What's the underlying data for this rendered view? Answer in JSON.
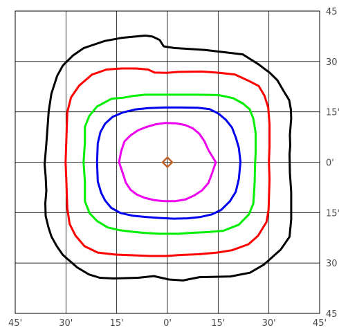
{
  "chart_data": {
    "type": "line",
    "title": "",
    "xlabel": "",
    "ylabel": "",
    "xlim": [
      -45,
      45
    ],
    "ylim": [
      -45,
      45
    ],
    "grid": true,
    "x_ticks": [
      {
        "value": -45,
        "label": "45'"
      },
      {
        "value": -30,
        "label": "30'"
      },
      {
        "value": -15,
        "label": "15'"
      },
      {
        "value": 0,
        "label": "0'"
      },
      {
        "value": 15,
        "label": "15'"
      },
      {
        "value": 30,
        "label": "30'"
      },
      {
        "value": 45,
        "label": "45'"
      }
    ],
    "y_ticks": [
      {
        "value": 45,
        "label": "45"
      },
      {
        "value": 30,
        "label": "30"
      },
      {
        "value": 15,
        "label": "15'"
      },
      {
        "value": 0,
        "label": "0'"
      },
      {
        "value": -15,
        "label": "15'"
      },
      {
        "value": -30,
        "label": "30"
      },
      {
        "value": -45,
        "label": "45"
      }
    ],
    "center_marker": {
      "x": 0,
      "y": 0,
      "shape": "diamond",
      "color": "#c0632a"
    },
    "series": [
      {
        "color": "#000000",
        "points": [
          [
            -36.3,
            -0.6
          ],
          [
            -35.8,
            5.5
          ],
          [
            -35.1,
            15.2
          ],
          [
            -34.3,
            20.4
          ],
          [
            -32.6,
            25.7
          ],
          [
            -30.9,
            28.8
          ],
          [
            -27.9,
            31.8
          ],
          [
            -24.7,
            34.0
          ],
          [
            -18.5,
            36.1
          ],
          [
            -13.6,
            37.0
          ],
          [
            -6.5,
            37.7
          ],
          [
            -4.4,
            37.4
          ],
          [
            -2.3,
            36.4
          ],
          [
            -1.1,
            34.5
          ],
          [
            2.0,
            34.0
          ],
          [
            11.2,
            33.4
          ],
          [
            22.3,
            32.1
          ],
          [
            27.0,
            29.1
          ],
          [
            30.3,
            26.6
          ],
          [
            32.5,
            24.4
          ],
          [
            34.3,
            21.3
          ],
          [
            36.0,
            18.5
          ],
          [
            36.5,
            15.8
          ],
          [
            36.6,
            13.1
          ],
          [
            36.2,
            8.1
          ],
          [
            36.3,
            4.9
          ],
          [
            36.1,
            2.5
          ],
          [
            36.2,
            -3.1
          ],
          [
            36.6,
            -8.9
          ],
          [
            36.6,
            -17.0
          ],
          [
            36.1,
            -22.2
          ],
          [
            33.5,
            -26.0
          ],
          [
            28.5,
            -30.5
          ],
          [
            24.4,
            -32.9
          ],
          [
            18.6,
            -34.0
          ],
          [
            9.5,
            -34.2
          ],
          [
            6.5,
            -34.8
          ],
          [
            4.6,
            -35.2
          ],
          [
            0.5,
            -34.9
          ],
          [
            -4.0,
            -33.9
          ],
          [
            -8.7,
            -34.4
          ],
          [
            -15.9,
            -34.6
          ],
          [
            -20.0,
            -34.4
          ],
          [
            -23.2,
            -33.4
          ],
          [
            -26.7,
            -31.3
          ],
          [
            -30.9,
            -27.6
          ],
          [
            -32.7,
            -25.0
          ],
          [
            -34.3,
            -22.1
          ],
          [
            -35.2,
            -19.3
          ],
          [
            -36.0,
            -16.0
          ],
          [
            -36.1,
            -12.2
          ],
          [
            -35.8,
            -8.5
          ],
          [
            -36.0,
            -4.3
          ],
          [
            -36.3,
            -0.6
          ]
        ]
      },
      {
        "color": "#ff0000",
        "points": [
          [
            -30.1,
            0.0
          ],
          [
            -29.6,
            14.9
          ],
          [
            -28.5,
            19.3
          ],
          [
            -26.1,
            22.8
          ],
          [
            -22.3,
            26.1
          ],
          [
            -18.0,
            27.6
          ],
          [
            -13.6,
            27.9
          ],
          [
            -9.2,
            27.9
          ],
          [
            -5.7,
            27.6
          ],
          [
            -3.8,
            26.7
          ],
          [
            -0.1,
            26.6
          ],
          [
            3.3,
            26.9
          ],
          [
            10.2,
            27.0
          ],
          [
            15.4,
            26.6
          ],
          [
            20.0,
            26.1
          ],
          [
            24.1,
            24.2
          ],
          [
            27.0,
            22.7
          ],
          [
            28.7,
            19.8
          ],
          [
            29.8,
            16.3
          ],
          [
            30.2,
            11.2
          ],
          [
            30.2,
            4.7
          ],
          [
            30.0,
            0.2
          ],
          [
            30.2,
            -5.0
          ],
          [
            29.9,
            -14.1
          ],
          [
            29.3,
            -17.8
          ],
          [
            26.8,
            -21.9
          ],
          [
            24.0,
            -24.4
          ],
          [
            19.1,
            -26.2
          ],
          [
            14.7,
            -26.9
          ],
          [
            9.2,
            -27.4
          ],
          [
            4.1,
            -27.6
          ],
          [
            -0.3,
            -27.9
          ],
          [
            -5.2,
            -27.9
          ],
          [
            -10.1,
            -27.7
          ],
          [
            -15.3,
            -27.5
          ],
          [
            -20.6,
            -26.9
          ],
          [
            -24.5,
            -25.0
          ],
          [
            -27.2,
            -21.8
          ],
          [
            -28.9,
            -18.4
          ],
          [
            -29.6,
            -13.8
          ],
          [
            -29.9,
            -4.9
          ],
          [
            -30.1,
            0.0
          ]
        ]
      },
      {
        "color": "#00ee00",
        "points": [
          [
            -24.8,
            0.0
          ],
          [
            -24.4,
            5.9
          ],
          [
            -24.4,
            10.5
          ],
          [
            -23.1,
            13.8
          ],
          [
            -20.8,
            16.6
          ],
          [
            -16.5,
            18.9
          ],
          [
            -13.2,
            19.2
          ],
          [
            -10.3,
            19.7
          ],
          [
            -6.5,
            20.1
          ],
          [
            -1.9,
            20.1
          ],
          [
            2.5,
            20.1
          ],
          [
            8.7,
            20.1
          ],
          [
            15.1,
            20.0
          ],
          [
            19.4,
            19.1
          ],
          [
            22.3,
            17.5
          ],
          [
            24.3,
            15.8
          ],
          [
            25.4,
            13.0
          ],
          [
            26.1,
            8.6
          ],
          [
            26.1,
            3.2
          ],
          [
            25.9,
            -0.9
          ],
          [
            25.8,
            -5.9
          ],
          [
            25.4,
            -12.3
          ],
          [
            24.1,
            -15.5
          ],
          [
            21.1,
            -18.6
          ],
          [
            16.5,
            -20.4
          ],
          [
            11.7,
            -20.8
          ],
          [
            7.4,
            -21.0
          ],
          [
            3.2,
            -21.3
          ],
          [
            0.5,
            -21.3
          ],
          [
            -2.5,
            -21.3
          ],
          [
            -7.2,
            -21.0
          ],
          [
            -11.3,
            -20.6
          ],
          [
            -14.3,
            -20.2
          ],
          [
            -17.7,
            -19.4
          ],
          [
            -20.8,
            -17.5
          ],
          [
            -23.0,
            -15.2
          ],
          [
            -24.4,
            -11.6
          ],
          [
            -24.4,
            -5.8
          ],
          [
            -24.8,
            0.0
          ]
        ]
      },
      {
        "color": "#0000ee",
        "points": [
          [
            -20.8,
            0.0
          ],
          [
            -20.6,
            5.6
          ],
          [
            -19.8,
            9.0
          ],
          [
            -18.4,
            11.5
          ],
          [
            -16.2,
            13.5
          ],
          [
            -13.2,
            14.8
          ],
          [
            -9.6,
            15.7
          ],
          [
            -5.6,
            16.1
          ],
          [
            -0.8,
            16.3
          ],
          [
            3.9,
            16.3
          ],
          [
            9.0,
            16.2
          ],
          [
            12.5,
            15.8
          ],
          [
            15.1,
            14.5
          ],
          [
            17.3,
            12.6
          ],
          [
            19.1,
            10.3
          ],
          [
            20.2,
            7.4
          ],
          [
            21.1,
            4.3
          ],
          [
            21.6,
            0.1
          ],
          [
            21.1,
            -5.0
          ],
          [
            20.2,
            -8.8
          ],
          [
            18.5,
            -11.6
          ],
          [
            15.9,
            -14.2
          ],
          [
            13.2,
            -15.5
          ],
          [
            9.8,
            -16.3
          ],
          [
            5.9,
            -16.7
          ],
          [
            2.0,
            -16.8
          ],
          [
            -2.0,
            -16.6
          ],
          [
            -6.4,
            -16.3
          ],
          [
            -10.4,
            -15.9
          ],
          [
            -13.9,
            -15.1
          ],
          [
            -16.6,
            -13.6
          ],
          [
            -18.4,
            -11.4
          ],
          [
            -19.6,
            -9.1
          ],
          [
            -20.6,
            -5.7
          ],
          [
            -20.8,
            0.0
          ]
        ]
      },
      {
        "color": "#ee00ee",
        "points": [
          [
            -14.3,
            0.0
          ],
          [
            -13.7,
            3.2
          ],
          [
            -12.7,
            6.2
          ],
          [
            -10.8,
            8.1
          ],
          [
            -8.7,
            9.5
          ],
          [
            -6.2,
            10.5
          ],
          [
            -3.4,
            11.3
          ],
          [
            -0.6,
            11.7
          ],
          [
            2.5,
            11.6
          ],
          [
            5.2,
            11.1
          ],
          [
            7.5,
            10.1
          ],
          [
            9.4,
            8.5
          ],
          [
            10.9,
            6.3
          ],
          [
            12.2,
            3.5
          ],
          [
            14.3,
            0.0
          ],
          [
            13.2,
            -3.3
          ],
          [
            12.1,
            -6.2
          ],
          [
            10.2,
            -8.4
          ],
          [
            7.9,
            -9.9
          ],
          [
            5.3,
            -11.1
          ],
          [
            2.2,
            -11.6
          ],
          [
            -1.0,
            -11.6
          ],
          [
            -3.8,
            -11.3
          ],
          [
            -6.7,
            -10.6
          ],
          [
            -9.1,
            -9.6
          ],
          [
            -10.9,
            -8.2
          ],
          [
            -12.3,
            -6.1
          ],
          [
            -13.2,
            -3.3
          ],
          [
            -14.3,
            0.0
          ]
        ]
      }
    ]
  }
}
